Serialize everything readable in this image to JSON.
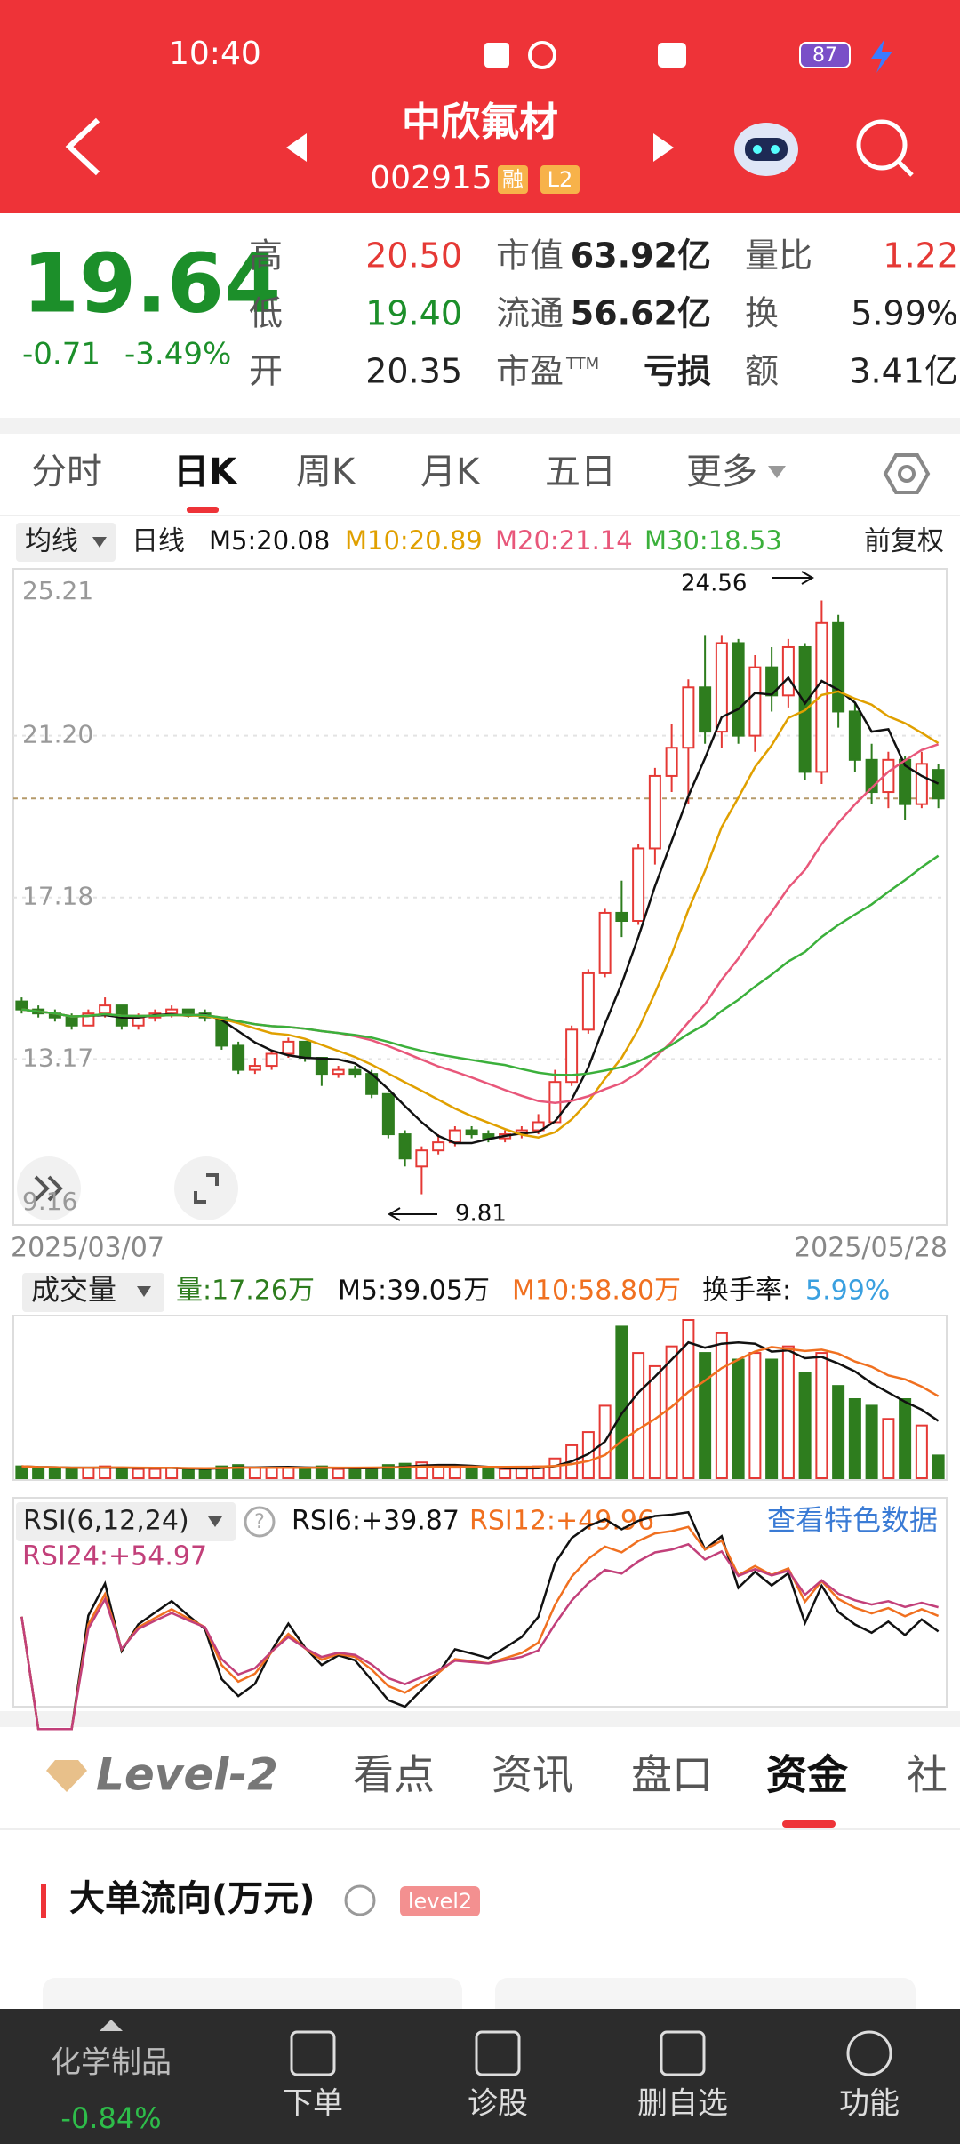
{
  "status_bar": {
    "time": "10:40",
    "battery": "87"
  },
  "header": {
    "title": "中欣氟材",
    "code": "002915",
    "tags": [
      "融",
      "L2"
    ]
  },
  "quote": {
    "price": "19.64",
    "change": "-0.71",
    "change_pct": "-3.49%",
    "fields": [
      [
        "高",
        "20.50"
      ],
      [
        "低",
        "19.40"
      ],
      [
        "开",
        "20.35"
      ],
      [
        "市值",
        "63.92亿"
      ],
      [
        "流通",
        "56.62亿"
      ],
      [
        "市盈",
        "亏损"
      ],
      [
        "量比",
        "1.22"
      ],
      [
        "换",
        "5.99%"
      ],
      [
        "额",
        "3.41亿"
      ]
    ],
    "pe_sup": "TTM"
  },
  "period_tabs": [
    "分时",
    "日K",
    "周K",
    "月K",
    "五日",
    "更多"
  ],
  "ma_legend": {
    "selector": "均线",
    "line": "日线",
    "items": [
      "M5:20.08",
      "M10:20.89",
      "M20:21.14",
      "M30:18.53"
    ],
    "adjust": "前复权"
  },
  "kline": {
    "price_ticks": [
      {
        "value": 25.21,
        "label": "25.21"
      },
      {
        "value": 21.2,
        "label": "21.20"
      },
      {
        "value": 17.18,
        "label": "17.18"
      },
      {
        "value": 13.17,
        "label": "13.17"
      },
      {
        "value": 9.16,
        "label": "9.16"
      }
    ],
    "high_label": "24.56",
    "low_label": "9.81",
    "start_date": "2025/03/07",
    "end_date": "2025/05/28",
    "candles": [
      [
        14.6,
        14.7,
        14.3,
        14.4
      ],
      [
        14.4,
        14.5,
        14.2,
        14.3
      ],
      [
        14.3,
        14.4,
        14.1,
        14.2
      ],
      [
        14.2,
        14.3,
        13.9,
        14.0
      ],
      [
        14.0,
        14.4,
        14.0,
        14.3
      ],
      [
        14.3,
        14.7,
        14.2,
        14.5
      ],
      [
        14.5,
        14.5,
        13.9,
        14.0
      ],
      [
        14.0,
        14.3,
        13.9,
        14.2
      ],
      [
        14.2,
        14.4,
        14.1,
        14.3
      ],
      [
        14.3,
        14.5,
        14.2,
        14.4
      ],
      [
        14.4,
        14.4,
        14.2,
        14.3
      ],
      [
        14.3,
        14.4,
        14.1,
        14.2
      ],
      [
        14.2,
        14.2,
        13.4,
        13.5
      ],
      [
        13.5,
        13.6,
        12.8,
        12.9
      ],
      [
        12.9,
        13.2,
        12.8,
        13.0
      ],
      [
        13.0,
        13.4,
        12.9,
        13.3
      ],
      [
        13.3,
        13.7,
        13.2,
        13.6
      ],
      [
        13.6,
        13.6,
        13.1,
        13.2
      ],
      [
        13.2,
        13.2,
        12.5,
        12.8
      ],
      [
        12.8,
        13.0,
        12.7,
        12.9
      ],
      [
        12.9,
        13.0,
        12.7,
        12.8
      ],
      [
        12.8,
        12.9,
        12.2,
        12.3
      ],
      [
        12.3,
        12.3,
        11.2,
        11.3
      ],
      [
        11.3,
        11.4,
        10.5,
        10.7
      ],
      [
        10.5,
        11.0,
        9.81,
        10.9
      ],
      [
        10.9,
        11.3,
        10.8,
        11.1
      ],
      [
        11.1,
        11.5,
        11.0,
        11.4
      ],
      [
        11.4,
        11.5,
        11.2,
        11.3
      ],
      [
        11.3,
        11.4,
        11.1,
        11.2
      ],
      [
        11.2,
        11.4,
        11.1,
        11.3
      ],
      [
        11.3,
        11.5,
        11.2,
        11.4
      ],
      [
        11.4,
        11.8,
        11.3,
        11.6
      ],
      [
        11.6,
        12.9,
        11.6,
        12.6
      ],
      [
        12.6,
        14.0,
        12.5,
        13.9
      ],
      [
        13.9,
        15.4,
        13.8,
        15.3
      ],
      [
        15.3,
        16.9,
        15.2,
        16.8
      ],
      [
        16.8,
        17.6,
        16.2,
        16.6
      ],
      [
        16.6,
        18.5,
        16.5,
        18.4
      ],
      [
        18.4,
        20.4,
        18.0,
        20.2
      ],
      [
        20.2,
        21.5,
        19.8,
        20.9
      ],
      [
        20.9,
        22.6,
        19.5,
        22.4
      ],
      [
        22.4,
        23.7,
        21.0,
        21.3
      ],
      [
        21.3,
        23.7,
        20.9,
        23.5
      ],
      [
        23.5,
        23.6,
        21.0,
        21.2
      ],
      [
        21.2,
        23.2,
        20.8,
        22.9
      ],
      [
        22.9,
        23.4,
        21.8,
        22.2
      ],
      [
        22.2,
        23.6,
        21.9,
        23.4
      ],
      [
        23.4,
        23.5,
        20.1,
        20.3
      ],
      [
        20.3,
        24.56,
        20.0,
        24.0
      ],
      [
        24.0,
        24.2,
        21.4,
        21.8
      ],
      [
        21.8,
        22.0,
        20.3,
        20.6
      ],
      [
        20.6,
        21.0,
        19.5,
        19.8
      ],
      [
        19.8,
        20.8,
        19.4,
        20.6
      ],
      [
        20.6,
        20.7,
        19.1,
        19.5
      ],
      [
        19.5,
        20.8,
        19.4,
        20.5
      ],
      [
        20.35,
        20.5,
        19.4,
        19.64
      ]
    ]
  },
  "volume": {
    "selector": "成交量",
    "items": [
      "量:17.26万",
      "M5:39.05万",
      "M10:58.80万"
    ],
    "turnover_label": "换手率:",
    "turnover": "5.99%",
    "values": [
      9,
      8,
      8,
      7,
      8,
      9,
      8,
      7,
      7,
      8,
      7,
      7,
      9,
      10,
      8,
      8,
      8,
      7,
      9,
      7,
      7,
      8,
      10,
      11,
      12,
      9,
      8,
      7,
      7,
      7,
      8,
      9,
      15,
      25,
      35,
      55,
      115,
      95,
      85,
      100,
      120,
      95,
      110,
      90,
      95,
      90,
      100,
      80,
      95,
      70,
      60,
      55,
      45,
      60,
      40,
      17.26
    ]
  },
  "rsi": {
    "selector": "RSI(6,12,24)",
    "items": [
      "RSI6:+39.87",
      "RSI12:+49.96",
      "RSI24:+54.97"
    ],
    "link": "查看特色数据"
  },
  "detail_tabs": [
    "Level-2",
    "看点",
    "资讯",
    "盘口",
    "资金",
    "社"
  ],
  "section": {
    "title": "大单流向(万元)",
    "tag": "level2"
  },
  "bottom_nav": {
    "sector": "化学制品",
    "sector_change": "-0.84%",
    "items": [
      "下单",
      "诊股",
      "删自选",
      "功能"
    ]
  }
}
